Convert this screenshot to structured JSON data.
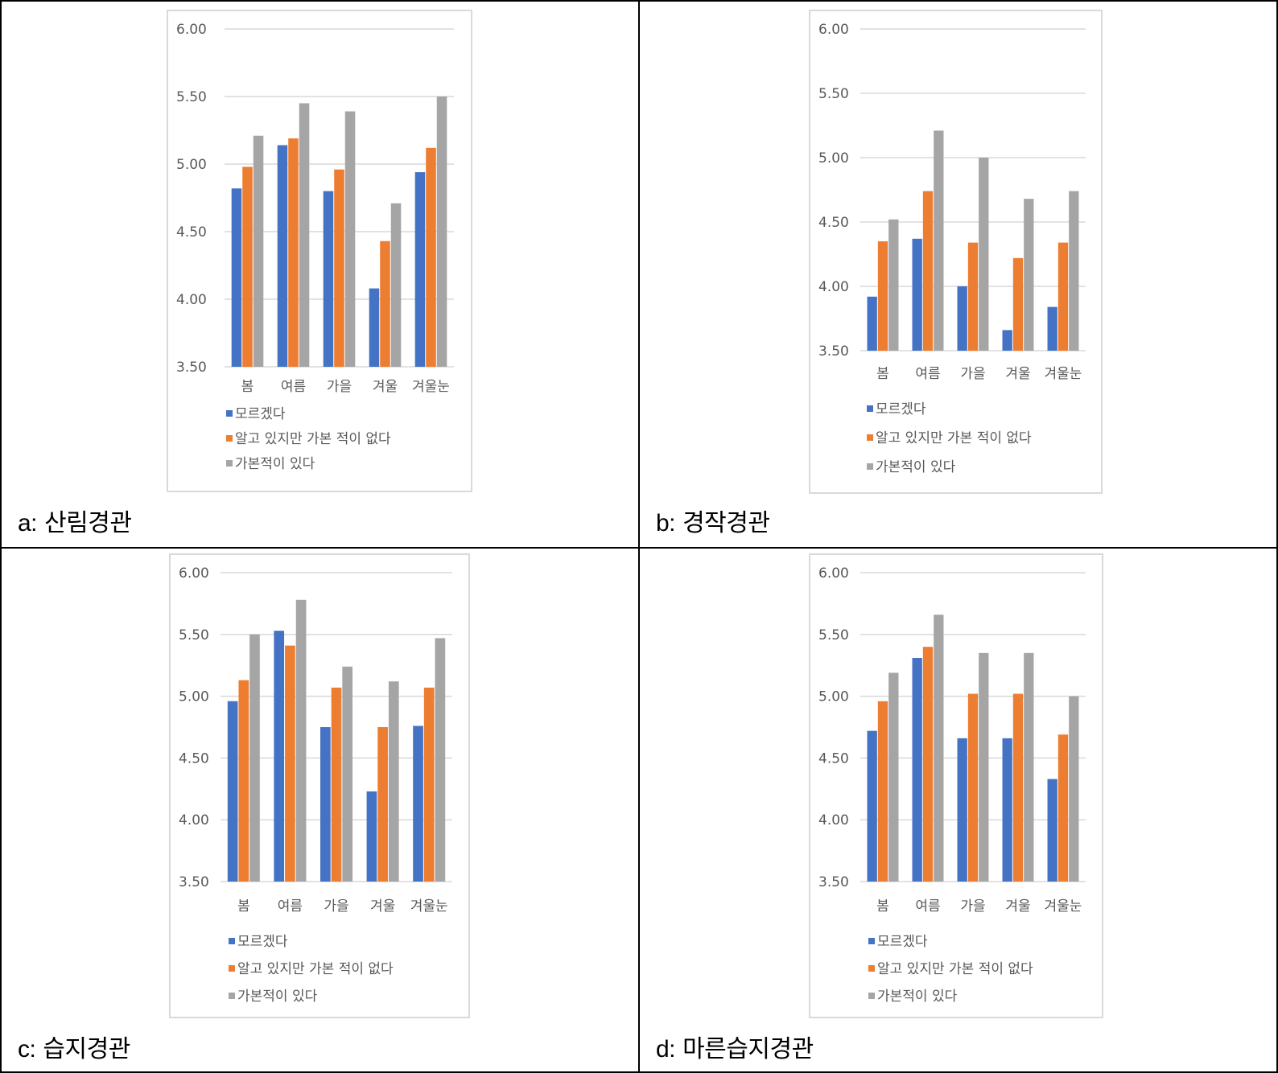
{
  "colors": {
    "series1": "#4472c4",
    "series2": "#ed7d31",
    "series3": "#a5a5a5",
    "grid": "#d9d9d9",
    "tick_text": "#595959"
  },
  "panels": [
    {
      "id": "a",
      "letter": "a:",
      "name": "산림경관"
    },
    {
      "id": "b",
      "letter": "b:",
      "name": "경작경관"
    },
    {
      "id": "c",
      "letter": "c:",
      "name": "습지경관"
    },
    {
      "id": "d",
      "letter": "d:",
      "name": "마른습지경관"
    }
  ],
  "chart_data": [
    {
      "type": "bar",
      "title": "a: 산림경관",
      "categories": [
        "봄",
        "여름",
        "가을",
        "겨울",
        "겨울눈"
      ],
      "ylim": [
        3.5,
        6.0
      ],
      "yticks": [
        "6.00",
        "5.50",
        "5.00",
        "4.50",
        "4.00",
        "3.50"
      ],
      "series": [
        {
          "name": "모르겠다",
          "values": [
            4.82,
            5.14,
            4.8,
            4.08,
            4.94
          ]
        },
        {
          "name": "알고 있지만 가본 적이 없다",
          "values": [
            4.98,
            5.19,
            4.96,
            4.43,
            5.12
          ]
        },
        {
          "name": "가본적이 있다",
          "values": [
            5.21,
            5.45,
            5.39,
            4.71,
            5.5
          ]
        }
      ]
    },
    {
      "type": "bar",
      "title": "b: 경작경관",
      "categories": [
        "봄",
        "여름",
        "가을",
        "겨울",
        "겨울눈"
      ],
      "ylim": [
        3.5,
        6.0
      ],
      "yticks": [
        "6.00",
        "5.50",
        "5.00",
        "4.50",
        "4.00",
        "3.50"
      ],
      "series": [
        {
          "name": "모르겠다",
          "values": [
            3.92,
            4.37,
            4.0,
            3.66,
            3.84
          ]
        },
        {
          "name": "알고 있지만 가본 적이 없다",
          "values": [
            4.35,
            4.74,
            4.34,
            4.22,
            4.34
          ]
        },
        {
          "name": "가본적이 있다",
          "values": [
            4.52,
            5.21,
            5.0,
            4.68,
            4.74
          ]
        }
      ]
    },
    {
      "type": "bar",
      "title": "c: 습지경관",
      "categories": [
        "봄",
        "여름",
        "가을",
        "겨울",
        "겨울눈"
      ],
      "ylim": [
        3.5,
        6.0
      ],
      "yticks": [
        "6.00",
        "5.50",
        "5.00",
        "4.50",
        "4.00",
        "3.50"
      ],
      "series": [
        {
          "name": "모르겠다",
          "values": [
            4.96,
            5.53,
            4.75,
            4.23,
            4.76
          ]
        },
        {
          "name": "알고 있지만 가본 적이 없다",
          "values": [
            5.13,
            5.41,
            5.07,
            4.75,
            5.07
          ]
        },
        {
          "name": "가본적이 있다",
          "values": [
            5.5,
            5.78,
            5.24,
            5.12,
            5.47
          ]
        }
      ]
    },
    {
      "type": "bar",
      "title": "d: 마른습지경관",
      "categories": [
        "봄",
        "여름",
        "가을",
        "겨울",
        "겨울눈"
      ],
      "ylim": [
        3.5,
        6.0
      ],
      "yticks": [
        "6.00",
        "5.50",
        "5.00",
        "4.50",
        "4.00",
        "3.50"
      ],
      "series": [
        {
          "name": "모르겠다",
          "values": [
            4.72,
            5.31,
            4.66,
            4.66,
            4.33
          ]
        },
        {
          "name": "알고 있지만 가본 적이 없다",
          "values": [
            4.96,
            5.4,
            5.02,
            5.02,
            4.69
          ]
        },
        {
          "name": "가본적이 있다",
          "values": [
            5.19,
            5.66,
            5.35,
            5.35,
            5.0
          ]
        }
      ]
    }
  ]
}
